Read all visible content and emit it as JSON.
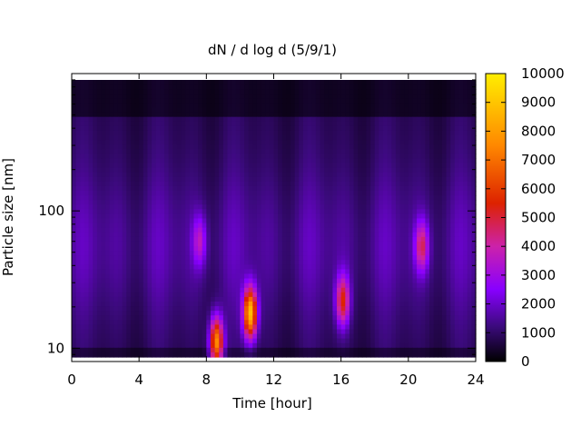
{
  "chart_data": {
    "type": "heatmap",
    "title": "dN / d log d (5/9/1)",
    "xlabel": "Time [hour]",
    "ylabel": "Particle size [nm]",
    "x_range": [
      0,
      24
    ],
    "x_ticks": [
      0,
      4,
      8,
      12,
      16,
      20,
      24
    ],
    "y_scale": "log",
    "y_range": [
      8,
      1000
    ],
    "y_ticks": [
      10,
      100
    ],
    "colorbar": {
      "range": [
        0,
        10000
      ],
      "ticks": [
        0,
        1000,
        2000,
        3000,
        4000,
        5000,
        6000,
        7000,
        8000,
        9000,
        10000
      ],
      "colormap": "black-blue-purple-red-orange-yellow",
      "stops": [
        "#000000",
        "#3a0a7a",
        "#8800ff",
        "#cc22aa",
        "#dd2200",
        "#ff8800",
        "#ffee00"
      ]
    },
    "background_level": 2000,
    "features": [
      {
        "label": "event 8.6 h",
        "time_hour": 8.6,
        "size_nm": 11,
        "peak": 8000
      },
      {
        "label": "event 10.6 h",
        "time_hour": 10.6,
        "size_nm": 18,
        "peak": 9000
      },
      {
        "label": "event 16.1 h",
        "time_hour": 16.1,
        "size_nm": 22,
        "peak": 5500
      },
      {
        "label": "event 20.8 h",
        "time_hour": 20.8,
        "size_nm": 55,
        "peak": 4500
      },
      {
        "label": "event 7.6 h",
        "time_hour": 7.6,
        "size_nm": 60,
        "peak": 3500
      }
    ]
  }
}
